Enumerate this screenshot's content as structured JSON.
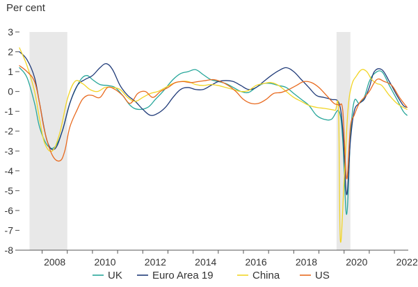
{
  "chart_data": {
    "type": "line",
    "ylabel": "Per cent",
    "ylim": [
      -8,
      3
    ],
    "xlim": [
      2007.1,
      2022.55
    ],
    "yticks": [
      3,
      2,
      1,
      0,
      -1,
      -2,
      -3,
      -4,
      -5,
      -6,
      -7,
      -8
    ],
    "xticks": [
      "2008",
      "2010",
      "2012",
      "2014",
      "2016",
      "2018",
      "2020",
      "2022"
    ],
    "recessions": [
      [
        2007.5,
        2009.0
      ],
      [
        2019.7,
        2020.25
      ]
    ],
    "grid": false,
    "legend_position": "bottom",
    "series": [
      {
        "name": "UK",
        "color": "#26a69a",
        "x": [
          2007.1,
          2007.4,
          2007.7,
          2007.9,
          2008.2,
          2008.5,
          2008.8,
          2009.1,
          2009.4,
          2009.6,
          2009.8,
          2010.0,
          2010.3,
          2010.6,
          2010.9,
          2011.2,
          2011.5,
          2011.8,
          2012.2,
          2012.5,
          2012.8,
          2013.2,
          2013.5,
          2013.8,
          2014.1,
          2014.4,
          2014.7,
          2015.0,
          2015.3,
          2015.6,
          2015.9,
          2016.2,
          2016.5,
          2016.8,
          2017.1,
          2017.4,
          2017.7,
          2018.0,
          2018.3,
          2018.6,
          2018.9,
          2019.2,
          2019.5,
          2019.8,
          2019.95,
          2020.1,
          2020.25,
          2020.4,
          2020.6,
          2020.8,
          2021.0,
          2021.2,
          2021.5,
          2021.8,
          2022.1,
          2022.35,
          2022.5
        ],
        "y": [
          1.2,
          0.7,
          -0.6,
          -1.8,
          -2.7,
          -2.8,
          -2.0,
          -0.6,
          0.3,
          0.7,
          0.8,
          0.6,
          0.35,
          0.3,
          0.2,
          -0.2,
          -0.7,
          -0.9,
          -0.8,
          -0.4,
          0.0,
          0.6,
          0.9,
          1.0,
          1.1,
          0.85,
          0.6,
          0.5,
          0.4,
          0.2,
          0.0,
          -0.05,
          0.2,
          0.4,
          0.4,
          0.3,
          0.2,
          -0.1,
          -0.4,
          -0.7,
          -1.2,
          -1.4,
          -1.4,
          -1.0,
          -2.5,
          -6.2,
          -2.3,
          -0.5,
          -0.6,
          -0.3,
          0.5,
          0.9,
          1.0,
          0.3,
          -0.4,
          -1.0,
          -1.2
        ]
      },
      {
        "name": "Euro Area 19",
        "color": "#1f3a78",
        "x": [
          2007.1,
          2007.4,
          2007.7,
          2007.9,
          2008.2,
          2008.5,
          2008.8,
          2009.1,
          2009.4,
          2009.7,
          2010.0,
          2010.3,
          2010.55,
          2010.8,
          2011.1,
          2011.4,
          2011.7,
          2012.0,
          2012.3,
          2012.6,
          2012.9,
          2013.2,
          2013.5,
          2013.8,
          2014.1,
          2014.4,
          2014.7,
          2015.0,
          2015.3,
          2015.6,
          2015.9,
          2016.2,
          2016.5,
          2016.8,
          2017.1,
          2017.4,
          2017.7,
          2018.0,
          2018.3,
          2018.6,
          2018.9,
          2019.2,
          2019.5,
          2019.8,
          2019.95,
          2020.1,
          2020.25,
          2020.4,
          2020.6,
          2020.8,
          2021.0,
          2021.2,
          2021.5,
          2021.8,
          2022.1,
          2022.35,
          2022.5
        ],
        "y": [
          2.0,
          1.6,
          0.7,
          -0.6,
          -2.5,
          -2.9,
          -2.0,
          -0.6,
          0.3,
          0.6,
          0.8,
          1.2,
          1.4,
          1.1,
          0.3,
          -0.2,
          -0.5,
          -0.9,
          -1.2,
          -1.1,
          -0.8,
          -0.3,
          0.1,
          0.2,
          0.1,
          0.1,
          0.3,
          0.5,
          0.55,
          0.5,
          0.3,
          0.1,
          0.2,
          0.5,
          0.8,
          1.05,
          1.2,
          1.0,
          0.6,
          0.2,
          -0.2,
          -0.3,
          -0.4,
          -0.6,
          -2.0,
          -5.2,
          -2.5,
          -1.0,
          -0.6,
          -0.4,
          0.2,
          1.0,
          1.1,
          0.5,
          -0.2,
          -0.7,
          -0.8
        ]
      },
      {
        "name": "China",
        "color": "#f2d526",
        "x": [
          2007.1,
          2007.4,
          2007.7,
          2007.9,
          2008.1,
          2008.4,
          2008.7,
          2009.0,
          2009.3,
          2009.6,
          2009.9,
          2010.2,
          2010.5,
          2010.8,
          2011.1,
          2011.4,
          2011.7,
          2012.0,
          2012.3,
          2012.6,
          2012.9,
          2013.2,
          2013.5,
          2013.8,
          2014.1,
          2014.4,
          2014.7,
          2015.0,
          2015.3,
          2015.6,
          2015.9,
          2016.2,
          2016.5,
          2016.8,
          2017.1,
          2017.4,
          2017.7,
          2018.0,
          2018.3,
          2018.6,
          2018.9,
          2019.2,
          2019.45,
          2019.65,
          2019.78,
          2019.85,
          2020.0,
          2020.15,
          2020.3,
          2020.5,
          2020.7,
          2020.9,
          2021.1,
          2021.3,
          2021.5,
          2021.8,
          2022.1,
          2022.35,
          2022.5
        ],
        "y": [
          2.2,
          1.3,
          0.0,
          -1.4,
          -2.6,
          -3.0,
          -2.1,
          -0.4,
          0.5,
          0.4,
          0.1,
          0.0,
          0.2,
          0.2,
          0.1,
          -0.3,
          -0.5,
          -0.3,
          -0.1,
          0.0,
          0.2,
          0.4,
          0.5,
          0.5,
          0.35,
          0.3,
          0.35,
          0.3,
          0.2,
          0.1,
          0.0,
          0.05,
          0.3,
          0.4,
          0.45,
          0.3,
          0.0,
          -0.3,
          -0.5,
          -0.7,
          -0.8,
          -0.85,
          -0.9,
          -0.95,
          -1.0,
          -7.5,
          -4.5,
          -1.0,
          0.3,
          0.8,
          1.1,
          1.0,
          0.6,
          0.4,
          0.3,
          -0.2,
          -0.6,
          -0.8,
          -0.9
        ]
      },
      {
        "name": "US",
        "color": "#e86a1f",
        "x": [
          2007.1,
          2007.4,
          2007.7,
          2007.9,
          2008.1,
          2008.4,
          2008.7,
          2008.9,
          2009.1,
          2009.4,
          2009.6,
          2009.8,
          2010.0,
          2010.3,
          2010.6,
          2010.9,
          2011.2,
          2011.5,
          2011.8,
          2012.1,
          2012.4,
          2012.7,
          2013.0,
          2013.3,
          2013.6,
          2013.9,
          2014.2,
          2014.5,
          2014.8,
          2015.1,
          2015.4,
          2015.7,
          2016.0,
          2016.3,
          2016.6,
          2016.9,
          2017.2,
          2017.5,
          2017.8,
          2018.1,
          2018.4,
          2018.7,
          2019.0,
          2019.3,
          2019.6,
          2019.8,
          2019.95,
          2020.1,
          2020.25,
          2020.4,
          2020.6,
          2020.8,
          2021.0,
          2021.3,
          2021.6,
          2021.9,
          2022.2,
          2022.5
        ],
        "y": [
          1.3,
          1.0,
          0.5,
          -0.6,
          -2.0,
          -3.2,
          -3.5,
          -3.0,
          -1.8,
          -0.9,
          -0.4,
          -0.2,
          -0.2,
          -0.3,
          0.2,
          0.1,
          -0.2,
          -0.6,
          -0.1,
          0.0,
          -0.3,
          0.0,
          0.2,
          0.45,
          0.5,
          0.45,
          0.5,
          0.55,
          0.6,
          0.5,
          0.3,
          0.0,
          -0.4,
          -0.6,
          -0.6,
          -0.4,
          -0.1,
          -0.05,
          0.1,
          0.3,
          0.5,
          0.45,
          0.2,
          -0.2,
          -0.6,
          -0.7,
          -1.0,
          -4.4,
          -1.8,
          -1.2,
          -0.6,
          -0.3,
          0.0,
          0.6,
          0.5,
          0.3,
          -0.3,
          -0.8
        ]
      }
    ]
  }
}
